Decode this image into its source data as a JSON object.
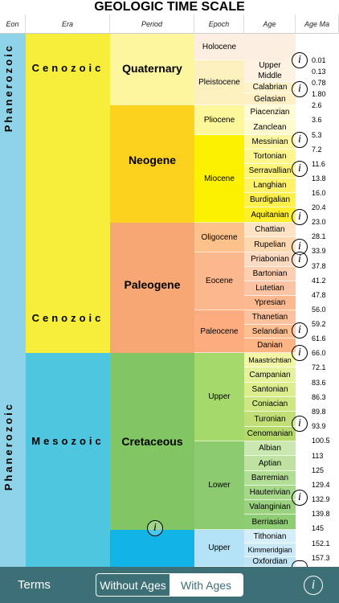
{
  "title": "GEOLOGIC TIME SCALE",
  "headers": {
    "eon": "Eon",
    "era": "Era",
    "period": "Period",
    "epoch": "Epoch",
    "age": "Age",
    "age_ma": "Age Ma"
  },
  "eon_labels": [
    "Phanerozoic",
    "Phanerozoic"
  ],
  "eras": {
    "cenozoic": "Cenozoic",
    "mesozoic": "Mesozoic"
  },
  "periods": {
    "quaternary": "Quaternary",
    "neogene": "Neogene",
    "paleogene": "Paleogene",
    "cretaceous": "Cretaceous"
  },
  "epochs": [
    "Holocene",
    "Pleistocene",
    "Pliocene",
    "Miocene",
    "Oligocene",
    "Eocene",
    "Paleocene",
    "Upper",
    "Lower",
    "Upper"
  ],
  "ages": [
    "Upper",
    "Middle",
    "Calabrian",
    "Gelasian",
    "Piacenzian",
    "Zanclean",
    "Messinian",
    "Tortonian",
    "Serravallian",
    "Langhian",
    "Burdigalian",
    "Aquitanian",
    "Chattian",
    "Rupelian",
    "Priabonian",
    "Bartonian",
    "Lutetian",
    "Ypresian",
    "Thanetian",
    "Selandian",
    "Danian",
    "Maastrichtian",
    "Campanian",
    "Santonian",
    "Coniacian",
    "Turonian",
    "Cenomanian",
    "Albian",
    "Aptian",
    "Barremian",
    "Hauterivian",
    "Valanginian",
    "Berriasian",
    "Tithonian",
    "Kimmeridgian",
    "Oxfordian"
  ],
  "ma_values": [
    "0.01",
    "0.13",
    "0.78",
    "1.80",
    "2.6",
    "3.6",
    "5.3",
    "7.2",
    "11.6",
    "13.8",
    "16.0",
    "20.4",
    "23.0",
    "28.1",
    "33.9",
    "37.8",
    "41.2",
    "47.8",
    "56.0",
    "59.2",
    "61.6",
    "66.0",
    "72.1",
    "83.6",
    "86.3",
    "89.8",
    "93.9",
    "100.5",
    "113",
    "125",
    "129.4",
    "132.9",
    "139.8",
    "145",
    "152.1",
    "157.3"
  ],
  "info_icon": "info-icon",
  "bottom_bar": {
    "terms": "Terms",
    "without_ages": "Without Ages",
    "with_ages": "With Ages",
    "selected": "With Ages"
  },
  "colors": {
    "eon": "#8fd3e8",
    "cenozoic": "#f6ee3a",
    "mesozoic": "#4ec6df",
    "quaternary": "#fdf69e",
    "neogene": "#fcd21f",
    "paleogene": "#f6a773",
    "cretaceous": "#82c663",
    "jurassic": "#11b4e4",
    "bar": "#3d6f76"
  }
}
